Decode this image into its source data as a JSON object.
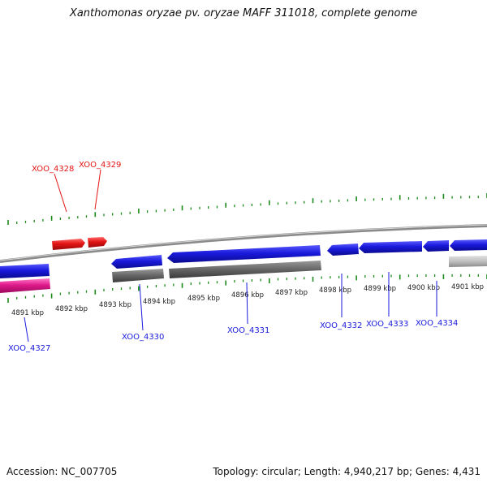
{
  "title": "Xanthomonas oryzae pv. oryzae MAFF 311018, complete genome",
  "footer": {
    "accession": "Accession: NC_007705",
    "summary": "Topology: circular; Length: 4,940,217 bp; Genes: 4,431"
  },
  "colors": {
    "forward_gene": "#e31414",
    "reverse_gene": "#1a1adc",
    "rna_gene": "#e01a8c",
    "cds_bar": "#6b6b6b",
    "pseudo_bar": "#c0c0c0",
    "backbone": "#8a8a8a",
    "ticks": "#1a8a1a",
    "forward_label": "#e31414",
    "reverse_label": "#1a1adc"
  },
  "scale": {
    "ticks_kbp": [
      4891,
      4892,
      4893,
      4894,
      4895,
      4896,
      4897,
      4898,
      4899,
      4900,
      4901
    ],
    "tick_labels": [
      "4891 kbp",
      "4892 kbp",
      "4893 kbp",
      "4894 kbp",
      "4895 kbp",
      "4896 kbp",
      "4897 kbp",
      "4898 kbp",
      "4899 kbp",
      "4900 kbp",
      "4901 kbp"
    ]
  },
  "genes_forward": [
    {
      "name": "XOO_4328",
      "strand": "forward"
    },
    {
      "name": "XOO_4329",
      "strand": "forward"
    }
  ],
  "genes_reverse": [
    {
      "name": "XOO_4327",
      "strand": "reverse"
    },
    {
      "name": "XOO_4330",
      "strand": "reverse"
    },
    {
      "name": "XOO_4331",
      "strand": "reverse"
    },
    {
      "name": "XOO_4332",
      "strand": "reverse"
    },
    {
      "name": "XOO_4333",
      "strand": "reverse"
    },
    {
      "name": "XOO_4334",
      "strand": "reverse"
    }
  ]
}
